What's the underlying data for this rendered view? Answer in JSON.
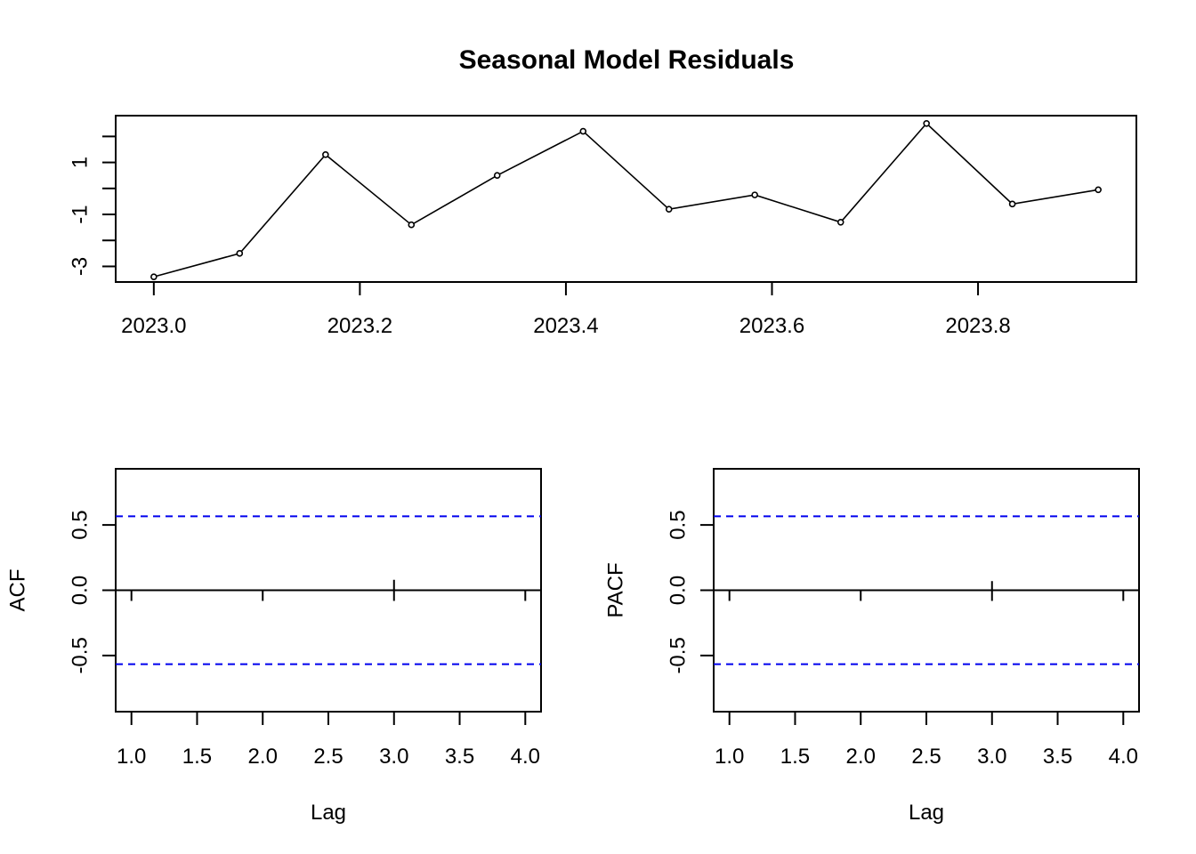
{
  "chart_data": [
    {
      "type": "line",
      "title": "Seasonal Model Residuals",
      "xlabel": "",
      "ylabel": "",
      "x": [
        2023.0,
        2023.0833,
        2023.1667,
        2023.25,
        2023.3333,
        2023.4167,
        2023.5,
        2023.5833,
        2023.6667,
        2023.75,
        2023.8333,
        2023.9167
      ],
      "series": [
        {
          "values": [
            -3.4,
            -2.5,
            1.3,
            -1.4,
            0.5,
            2.2,
            -0.8,
            -0.25,
            -1.3,
            2.5,
            -0.6,
            -0.05
          ]
        }
      ],
      "xlim": [
        2022.963,
        2023.9537
      ],
      "ylim": [
        -3.6,
        2.8
      ],
      "xticks": [
        2023.0,
        2023.2,
        2023.4,
        2023.6,
        2023.8
      ],
      "xtick_labels": [
        "2023.0",
        "2023.2",
        "2023.4",
        "2023.6",
        "2023.8"
      ],
      "yticks": [
        -3,
        -2,
        -1,
        0,
        1,
        2
      ],
      "ytick_labels": [
        "-3",
        "",
        "-1",
        "",
        "1",
        ""
      ],
      "markers": "open-circle",
      "grid": false
    },
    {
      "type": "bar",
      "title": "",
      "xlabel": "Lag",
      "ylabel": "ACF",
      "x": [
        1,
        2,
        3,
        4
      ],
      "values": [
        0.0,
        0.0,
        0.08,
        0.0
      ],
      "confidence_bound": 0.566,
      "confidence_color": "#0000EE",
      "xlim": [
        0.88,
        4.12
      ],
      "ylim": [
        -0.93,
        0.93
      ],
      "xticks": [
        1.0,
        1.5,
        2.0,
        2.5,
        3.0,
        3.5,
        4.0
      ],
      "xtick_labels": [
        "1.0",
        "1.5",
        "2.0",
        "2.5",
        "3.0",
        "3.5",
        "4.0"
      ],
      "yticks": [
        -0.5,
        0.0,
        0.5
      ],
      "ytick_labels": [
        "-0.5",
        "0.0",
        "0.5"
      ],
      "grid": false
    },
    {
      "type": "bar",
      "title": "",
      "xlabel": "Lag",
      "ylabel": "PACF",
      "x": [
        1,
        2,
        3,
        4
      ],
      "values": [
        0.0,
        0.0,
        0.07,
        0.0
      ],
      "confidence_bound": 0.566,
      "confidence_color": "#0000EE",
      "xlim": [
        0.88,
        4.12
      ],
      "ylim": [
        -0.93,
        0.93
      ],
      "xticks": [
        1.0,
        1.5,
        2.0,
        2.5,
        3.0,
        3.5,
        4.0
      ],
      "xtick_labels": [
        "1.0",
        "1.5",
        "2.0",
        "2.5",
        "3.0",
        "3.5",
        "4.0"
      ],
      "yticks": [
        -0.5,
        0.0,
        0.5
      ],
      "ytick_labels": [
        "-0.5",
        "0.0",
        "0.5"
      ],
      "grid": false
    }
  ]
}
